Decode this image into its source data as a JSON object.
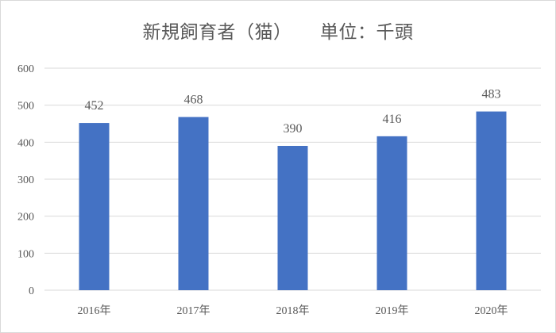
{
  "chart_data": {
    "type": "bar",
    "title": "新規飼育者（猫）　　単位：千頭",
    "categories": [
      "2016年",
      "2017年",
      "2018年",
      "2019年",
      "2020年"
    ],
    "series": [
      {
        "values": [
          452,
          468,
          390,
          416,
          483
        ]
      }
    ],
    "data_labels": [
      "452",
      "468",
      "390",
      "416",
      "483"
    ],
    "ylim": [
      0,
      600
    ],
    "y_ticks": [
      0,
      100,
      200,
      300,
      400,
      500,
      600
    ],
    "y_tick_labels": [
      "0",
      "100",
      "200",
      "300",
      "400",
      "500",
      "600"
    ],
    "grid": true,
    "legend": "none",
    "xlabel": "",
    "ylabel": "",
    "colors": {
      "bar": "#4472c4",
      "grid": "#d9d9d9",
      "text": "#595959"
    }
  }
}
